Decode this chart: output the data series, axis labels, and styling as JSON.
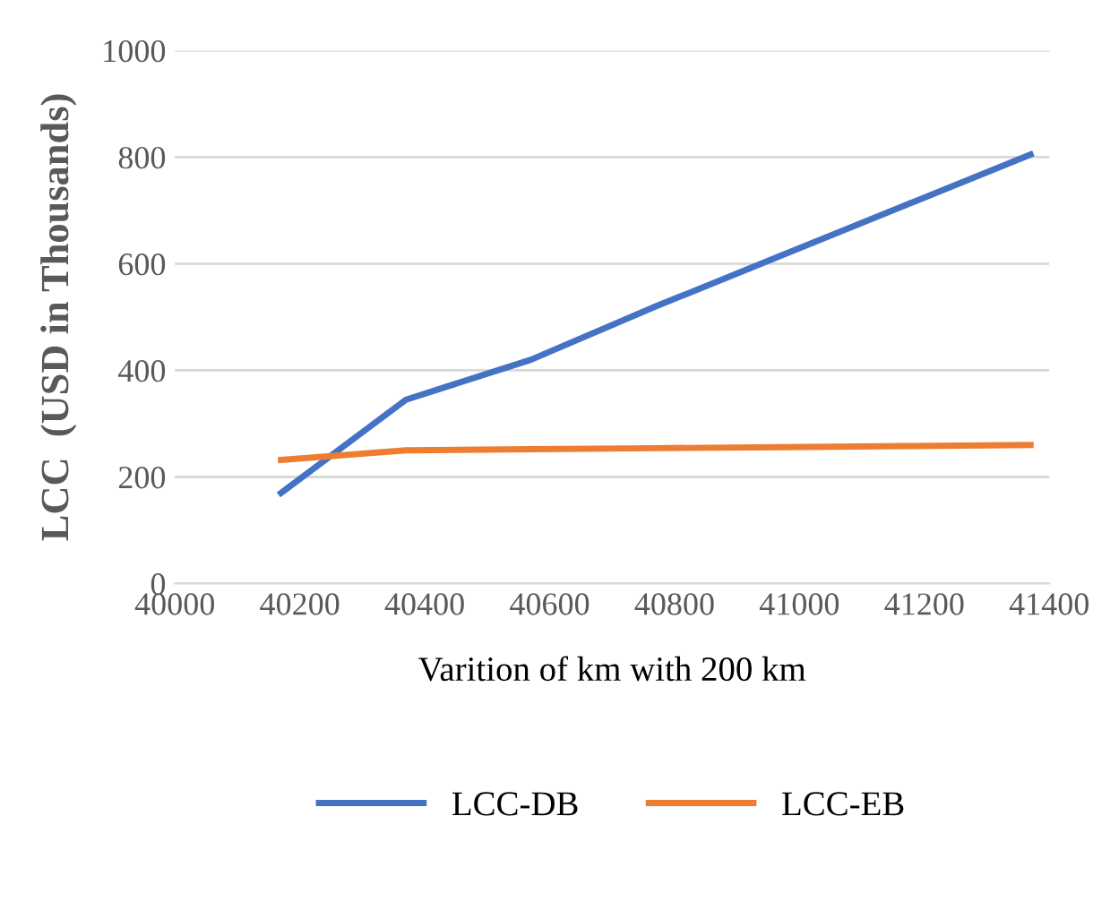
{
  "chart_data": {
    "type": "line",
    "xlabel": "Varition of km with 200 km",
    "ylabel": "LCC  (USD in Thousands)",
    "x": [
      40170,
      40370,
      40570,
      40770,
      40970,
      41170,
      41370
    ],
    "series": [
      {
        "name": "LCC-DB",
        "color": "#4472c4",
        "values": [
          170,
          345,
          420,
          520,
          615,
          710,
          805
        ]
      },
      {
        "name": "LCC-EB",
        "color": "#ed7d31",
        "values": [
          232,
          250,
          252,
          254,
          256,
          258,
          260
        ]
      }
    ],
    "xlim": [
      40000,
      41400
    ],
    "xticks": [
      40000,
      40200,
      40400,
      40600,
      40800,
      41000,
      41200,
      41400
    ],
    "ylim": [
      0,
      1000
    ],
    "yticks": [
      0,
      200,
      400,
      600,
      800,
      1000
    ],
    "grid": "y",
    "legend": "bottom",
    "marker": "none",
    "line_style": "solid"
  }
}
